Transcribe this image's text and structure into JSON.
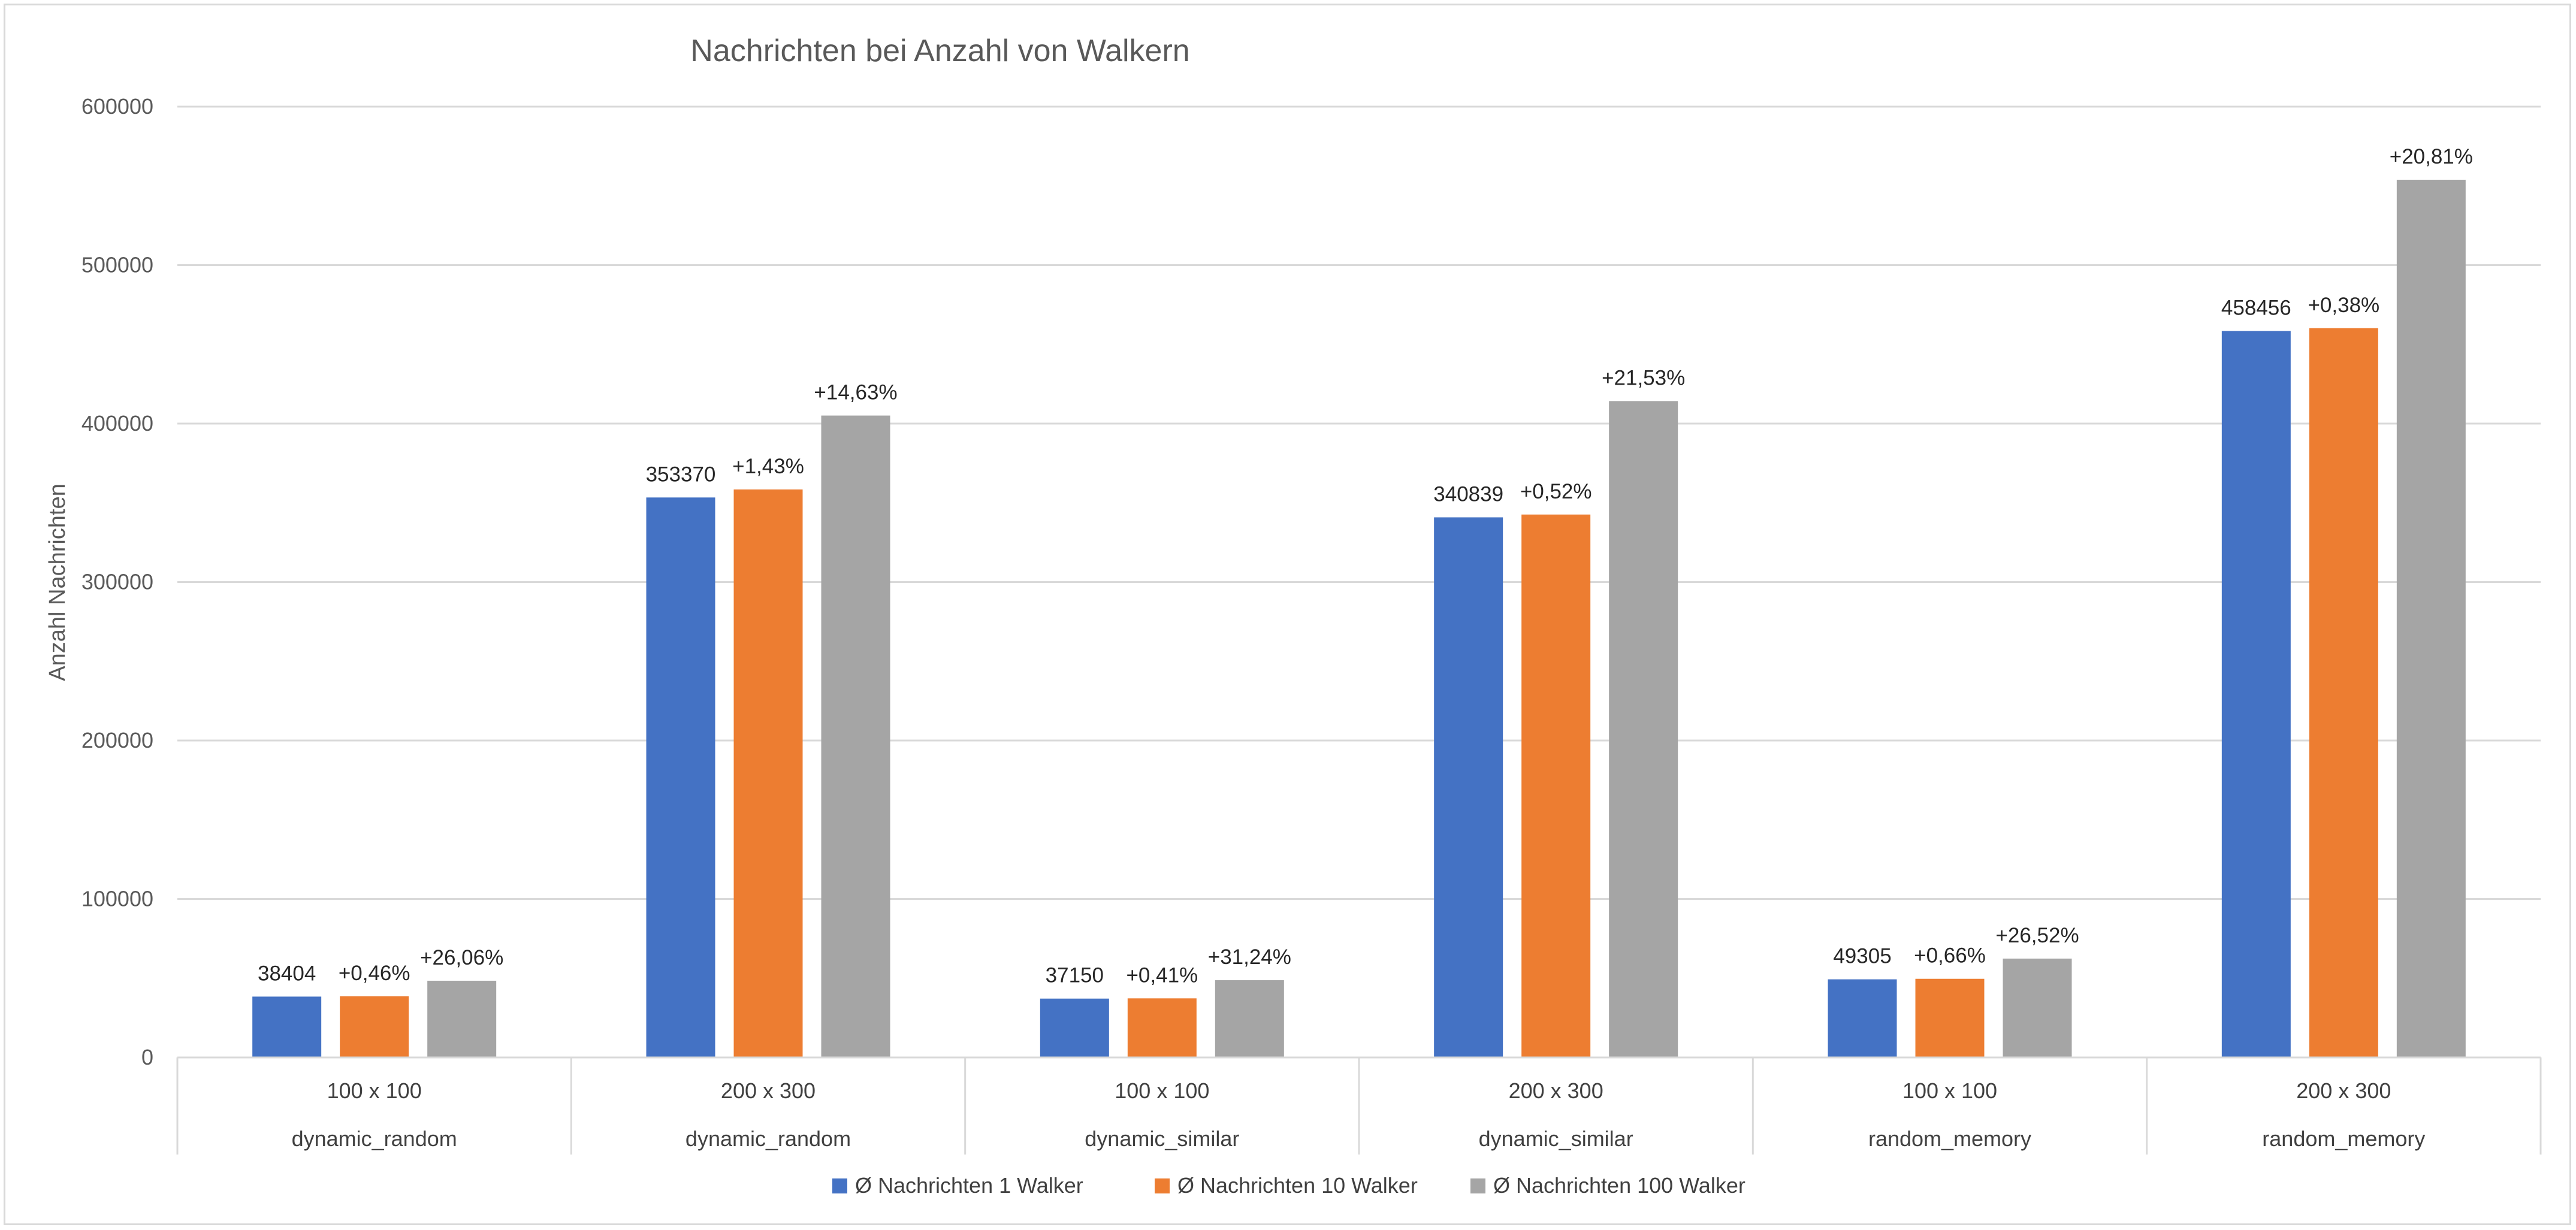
{
  "chart_data": {
    "type": "bar",
    "title": "Nachrichten bei Anzahl von Walkern",
    "ylabel": "Anzahl Nachrichten",
    "xlabel": "",
    "ylim": [
      0,
      600000
    ],
    "yticks": [
      0,
      100000,
      200000,
      300000,
      400000,
      500000,
      600000
    ],
    "ytick_labels": [
      "0",
      "100000",
      "200000",
      "300000",
      "400000",
      "500000",
      "600000"
    ],
    "grid": true,
    "legend_position": "bottom",
    "categories": [
      {
        "size": "100 x 100",
        "algorithm": "dynamic_random"
      },
      {
        "size": "200 x 300",
        "algorithm": "dynamic_random"
      },
      {
        "size": "100 x 100",
        "algorithm": "dynamic_similar"
      },
      {
        "size": "200 x 300",
        "algorithm": "dynamic_similar"
      },
      {
        "size": "100 x 100",
        "algorithm": "random_memory"
      },
      {
        "size": "200 x 300",
        "algorithm": "random_memory"
      }
    ],
    "series": [
      {
        "name": "Ø Nachrichten 1 Walker",
        "color": "#4472c4",
        "values": [
          38404,
          353370,
          37150,
          340839,
          49305,
          458456
        ],
        "labels": [
          "38404",
          "353370",
          "37150",
          "340839",
          "49305",
          "458456"
        ]
      },
      {
        "name": "Ø Nachrichten 10 Walker",
        "color": "#ed7d31",
        "values": [
          38581,
          358423,
          37302,
          342611,
          49630,
          460198
        ],
        "labels": [
          "+0,46%",
          "+1,43%",
          "+0,41%",
          "+0,52%",
          "+0,66%",
          "+0,38%"
        ]
      },
      {
        "name": "Ø Nachrichten 100 Walker",
        "color": "#a5a5a5",
        "values": [
          48412,
          405069,
          48756,
          414223,
          62381,
          553867
        ],
        "labels": [
          "+26,06%",
          "+14,63%",
          "+31,24%",
          "+21,53%",
          "+26,52%",
          "+20,81%"
        ]
      }
    ]
  }
}
